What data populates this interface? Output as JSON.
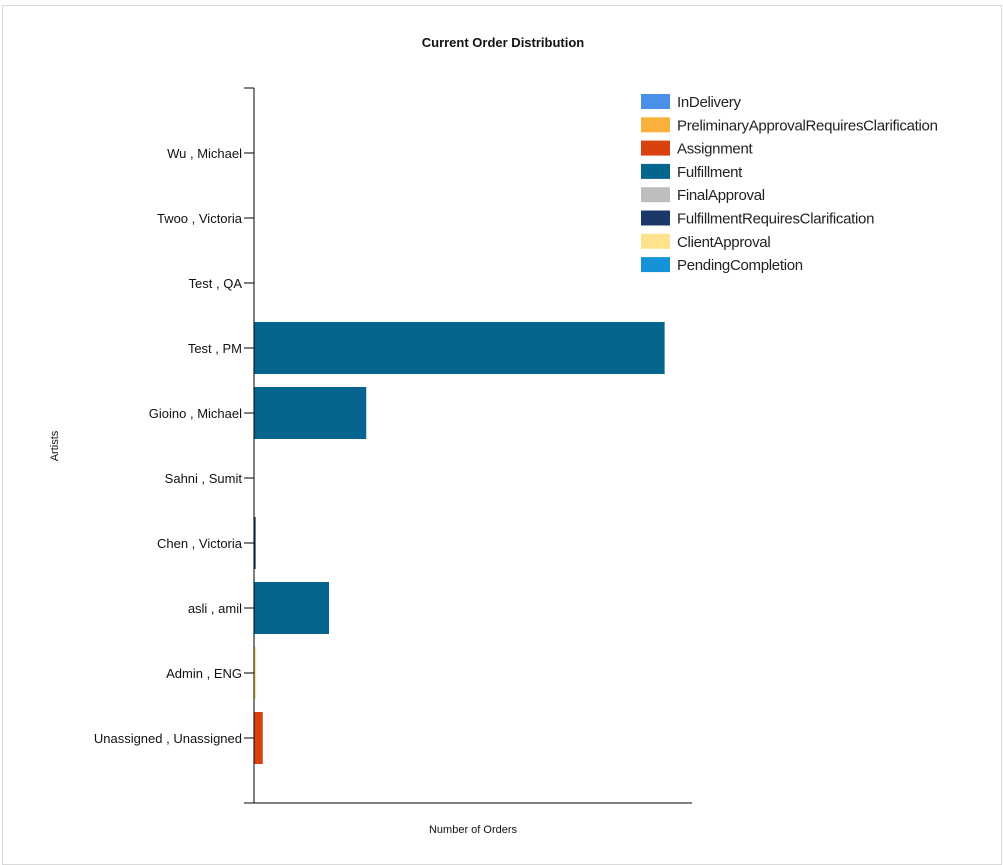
{
  "chart_data": {
    "type": "bar",
    "orientation": "horizontal",
    "stacked": true,
    "title": "Current Order Distribution",
    "xlabel": "Number of Orders",
    "ylabel": "Artists",
    "categories": [
      "Wu , Michael",
      "Twoo , Victoria",
      "Test , QA",
      "Test , PM",
      "Gioino , Michael",
      "Sahni , Sumit",
      "Chen , Victoria",
      "asli , amil",
      "Admin , ENG",
      "Unassigned , Unassigned"
    ],
    "xlim": [
      0,
      80
    ],
    "grid": false,
    "legend_position": "top-right",
    "series": [
      {
        "name": "InDelivery",
        "color": "#4a90e8",
        "values": [
          0,
          0,
          0,
          0,
          0,
          0,
          0,
          0,
          0,
          0
        ]
      },
      {
        "name": "PreliminaryApprovalRequiresClarification",
        "color": "#f9b13c",
        "values": [
          0,
          0,
          0,
          0,
          0,
          0,
          0,
          0,
          0,
          0
        ]
      },
      {
        "name": "Assignment",
        "color": "#d9410f",
        "values": [
          0,
          0,
          0,
          0,
          0,
          0,
          0,
          0,
          0,
          1.6
        ]
      },
      {
        "name": "Fulfillment",
        "color": "#05658f",
        "values": [
          0,
          0,
          0,
          75,
          20.5,
          0,
          0,
          13.7,
          0,
          0
        ]
      },
      {
        "name": "FinalApproval",
        "color": "#bdbdbd",
        "values": [
          0,
          0,
          0,
          0,
          0,
          0,
          0,
          0,
          0,
          0
        ]
      },
      {
        "name": "FulfillmentRequiresClarification",
        "color": "#1a3968",
        "values": [
          0,
          0,
          0,
          0,
          0,
          0,
          0.3,
          0,
          0,
          0
        ]
      },
      {
        "name": "ClientApproval",
        "color": "#fee28c",
        "values": [
          0,
          0,
          0,
          0,
          0,
          0,
          0,
          0,
          0.4,
          0
        ]
      },
      {
        "name": "PendingCompletion",
        "color": "#1593d9",
        "values": [
          0,
          0,
          0,
          0,
          0,
          0,
          0,
          0,
          0,
          0
        ]
      }
    ]
  }
}
